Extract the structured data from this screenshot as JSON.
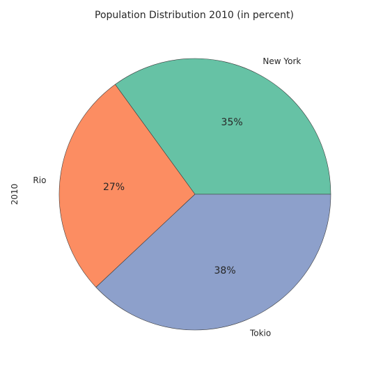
{
  "chart_data": {
    "type": "pie",
    "title": "Population Distribution 2010 (in percent)",
    "ylabel": "2010",
    "categories": [
      "New York",
      "Rio",
      "Tokio"
    ],
    "values": [
      35,
      27,
      38
    ],
    "percent_labels": [
      "35%",
      "27%",
      "38%"
    ],
    "colors": [
      "#66c2a5",
      "#fc8d62",
      "#8da0cb"
    ],
    "start_angle": 0,
    "direction": "counterclockwise"
  }
}
